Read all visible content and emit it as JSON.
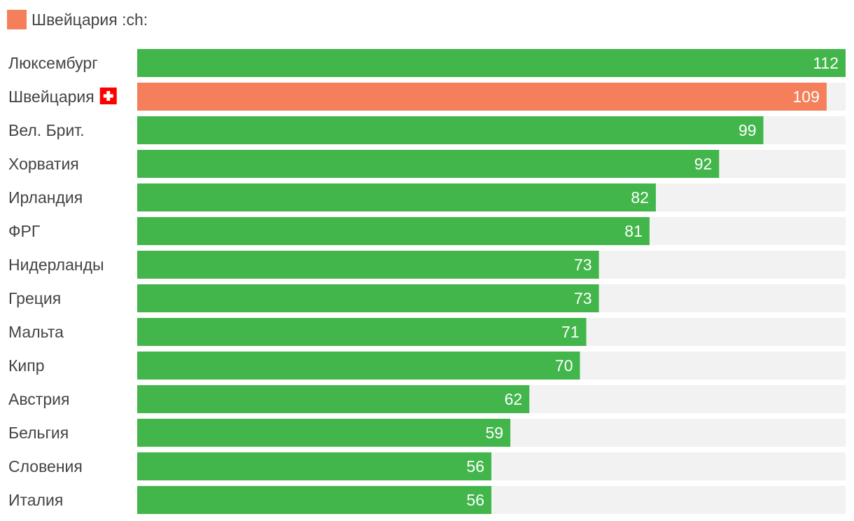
{
  "legend": {
    "label": "Швейцария :ch:",
    "highlight_color": "#F47F5A"
  },
  "colors": {
    "default_bar": "#42B64B",
    "highlight_bar": "#F47F5A",
    "track": "#F2F2F2",
    "flag_red": "#FF0000",
    "flag_cross": "#FFFFFF"
  },
  "chart_data": {
    "type": "bar",
    "orientation": "horizontal",
    "title": "",
    "xlabel": "",
    "ylabel": "",
    "xlim": [
      0,
      112
    ],
    "grid": false,
    "legend_position": "top-left",
    "categories": [
      "Люксембург",
      "Швейцария",
      "Вел. Брит.",
      "Хорватия",
      "Ирландия",
      "ФРГ",
      "Нидерланды",
      "Греция",
      "Мальта",
      "Кипр",
      "Австрия",
      "Бельгия",
      "Словения",
      "Италия"
    ],
    "values": [
      112,
      109,
      99,
      92,
      82,
      81,
      73,
      73,
      71,
      70,
      62,
      59,
      56,
      56
    ],
    "highlight": "Швейцария",
    "flag_icon_for": "Швейцария",
    "flag_icon": "swiss-flag-icon"
  }
}
